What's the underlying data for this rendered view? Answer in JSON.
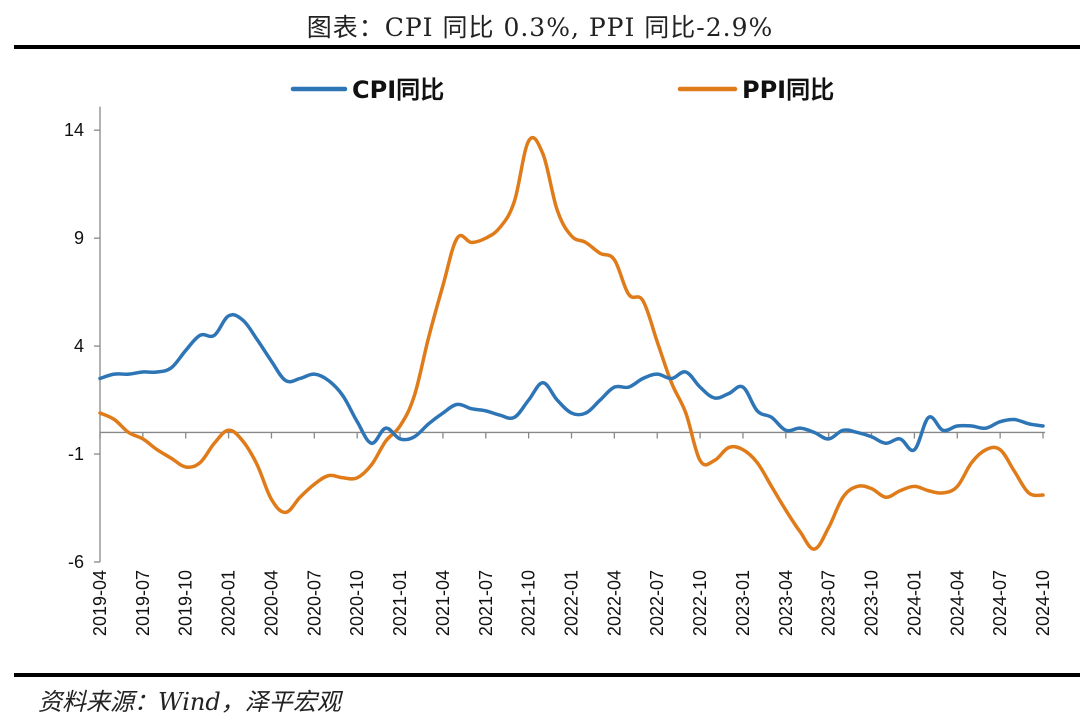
{
  "header": {
    "title": "图表：CPI 同比 0.3%, PPI 同比-2.9%"
  },
  "footer": {
    "source": "资料来源：Wind，泽平宏观"
  },
  "chart_data": {
    "type": "line",
    "ylim": [
      -6,
      15
    ],
    "yticks": [
      14,
      9,
      4,
      -1,
      -6
    ],
    "xtick_labels": [
      "2019-04",
      "2019-07",
      "2019-10",
      "2020-01",
      "2020-04",
      "2020-07",
      "2020-10",
      "2021-01",
      "2021-04",
      "2021-07",
      "2021-10",
      "2022-01",
      "2022-04",
      "2022-07",
      "2022-10",
      "2023-01",
      "2023-04",
      "2023-07",
      "2023-10",
      "2024-01",
      "2024-04",
      "2024-07",
      "2024-10"
    ],
    "grid": false,
    "legend_position": "top",
    "x": [
      "2019-04",
      "2019-05",
      "2019-06",
      "2019-07",
      "2019-08",
      "2019-09",
      "2019-10",
      "2019-11",
      "2019-12",
      "2020-01",
      "2020-02",
      "2020-03",
      "2020-04",
      "2020-05",
      "2020-06",
      "2020-07",
      "2020-08",
      "2020-09",
      "2020-10",
      "2020-11",
      "2020-12",
      "2021-01",
      "2021-02",
      "2021-03",
      "2021-04",
      "2021-05",
      "2021-06",
      "2021-07",
      "2021-08",
      "2021-09",
      "2021-10",
      "2021-11",
      "2021-12",
      "2022-01",
      "2022-02",
      "2022-03",
      "2022-04",
      "2022-05",
      "2022-06",
      "2022-07",
      "2022-08",
      "2022-09",
      "2022-10",
      "2022-11",
      "2022-12",
      "2023-01",
      "2023-02",
      "2023-03",
      "2023-04",
      "2023-05",
      "2023-06",
      "2023-07",
      "2023-08",
      "2023-09",
      "2023-10",
      "2023-11",
      "2023-12",
      "2024-01",
      "2024-02",
      "2024-03",
      "2024-04",
      "2024-05",
      "2024-06",
      "2024-07",
      "2024-08",
      "2024-09",
      "2024-10"
    ],
    "series": [
      {
        "name": "CPI同比",
        "color": "#2E75B6",
        "values": [
          2.5,
          2.7,
          2.7,
          2.8,
          2.8,
          3.0,
          3.8,
          4.5,
          4.5,
          5.4,
          5.2,
          4.3,
          3.3,
          2.4,
          2.5,
          2.7,
          2.4,
          1.7,
          0.5,
          -0.5,
          0.2,
          -0.3,
          -0.2,
          0.4,
          0.9,
          1.3,
          1.1,
          1.0,
          0.8,
          0.7,
          1.5,
          2.3,
          1.5,
          0.9,
          0.9,
          1.5,
          2.1,
          2.1,
          2.5,
          2.7,
          2.5,
          2.8,
          2.1,
          1.6,
          1.8,
          2.1,
          1.0,
          0.7,
          0.1,
          0.2,
          0.0,
          -0.3,
          0.1,
          0.0,
          -0.2,
          -0.5,
          -0.3,
          -0.8,
          0.7,
          0.1,
          0.3,
          0.3,
          0.2,
          0.5,
          0.6,
          0.4,
          0.3
        ]
      },
      {
        "name": "PPI同比",
        "color": "#E07B1A",
        "values": [
          0.9,
          0.6,
          0.0,
          -0.3,
          -0.8,
          -1.2,
          -1.6,
          -1.4,
          -0.5,
          0.1,
          -0.4,
          -1.5,
          -3.1,
          -3.7,
          -3.0,
          -2.4,
          -2.0,
          -2.1,
          -2.1,
          -1.5,
          -0.4,
          0.3,
          1.7,
          4.4,
          6.8,
          9.0,
          8.8,
          9.0,
          9.5,
          10.7,
          13.5,
          12.9,
          10.3,
          9.1,
          8.8,
          8.3,
          8.0,
          6.4,
          6.1,
          4.2,
          2.3,
          0.9,
          -1.3,
          -1.3,
          -0.7,
          -0.8,
          -1.4,
          -2.5,
          -3.6,
          -4.6,
          -5.4,
          -4.4,
          -3.0,
          -2.5,
          -2.6,
          -3.0,
          -2.7,
          -2.5,
          -2.7,
          -2.8,
          -2.5,
          -1.4,
          -0.8,
          -0.8,
          -1.8,
          -2.8,
          -2.9
        ]
      }
    ]
  }
}
